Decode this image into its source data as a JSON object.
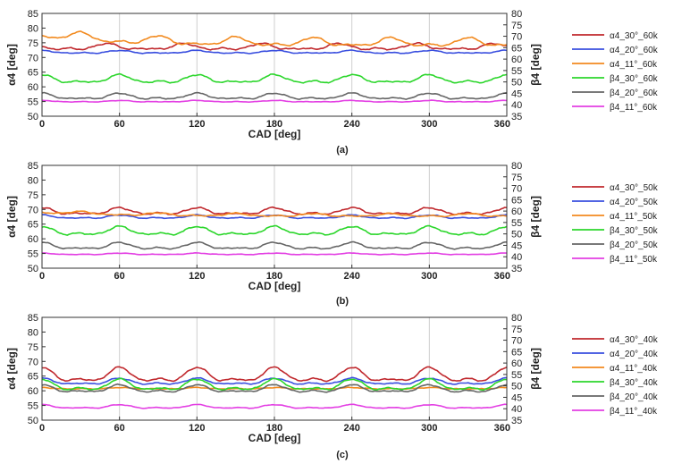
{
  "chart_data": [
    {
      "type": "line",
      "panel_label": "(a)",
      "xlabel": "CAD [deg]",
      "ylabel_left": "α4 [deg]",
      "ylabel_right": "β4 [deg]",
      "xlim": [
        0,
        360
      ],
      "ylim_left": [
        50,
        85
      ],
      "ylim_right": [
        35,
        80
      ],
      "xticks": [
        0,
        60,
        120,
        180,
        240,
        300,
        360
      ],
      "yticks_left": [
        50,
        55,
        60,
        65,
        70,
        75,
        80,
        85
      ],
      "yticks_right": [
        35,
        40,
        45,
        50,
        55,
        60,
        65,
        70,
        75,
        80
      ],
      "series": [
        {
          "name": "α4_30°_60k",
          "sym": "α",
          "sub": "4",
          "rest": "_30°_60k",
          "color": "#c0282d",
          "axis": "left",
          "base": 73.5,
          "amp": 1.3,
          "period": 60,
          "peak": 50,
          "noise": 0.35
        },
        {
          "name": "α4_20°_60k",
          "sym": "α",
          "sub": "4",
          "rest": "_20°_60k",
          "color": "#3a4fdf",
          "axis": "left",
          "base": 71.8,
          "amp": 0.6,
          "period": 60,
          "peak": 0,
          "noise": 0.2
        },
        {
          "name": "α4_11°_60k",
          "sym": "α",
          "sub": "4",
          "rest": "_11°_60k",
          "color": "#f28a1f",
          "axis": "left",
          "base": 75.0,
          "amp": 1.8,
          "period": 60,
          "peak": 30,
          "noise": 0.35,
          "trend": 3.0
        },
        {
          "name": "β4_30°_60k",
          "sym": "β",
          "sub": "4",
          "rest": "_30°_60k",
          "color": "#2bd62b",
          "axis": "right",
          "base": 51.0,
          "amp": 2.2,
          "period": 60,
          "peak": 0,
          "noise": 0.45
        },
        {
          "name": "β4_20°_60k",
          "sym": "β",
          "sub": "4",
          "rest": "_20°_60k",
          "color": "#666666",
          "axis": "right",
          "base": 43.5,
          "amp": 1.6,
          "period": 60,
          "peak": 0,
          "noise": 0.35
        },
        {
          "name": "β4_11°_60k",
          "sym": "β",
          "sub": "4",
          "rest": "_11°_60k",
          "color": "#e33fe3",
          "axis": "right",
          "base": 41.5,
          "amp": 0.4,
          "period": 60,
          "peak": 0,
          "noise": 0.15
        }
      ]
    },
    {
      "type": "line",
      "panel_label": "(b)",
      "xlabel": "CAD [deg]",
      "ylabel_left": "α4 [deg]",
      "ylabel_right": "β4 [deg]",
      "xlim": [
        0,
        360
      ],
      "ylim_left": [
        50,
        85
      ],
      "ylim_right": [
        35,
        80
      ],
      "xticks": [
        0,
        60,
        120,
        180,
        240,
        300,
        360
      ],
      "yticks_left": [
        50,
        55,
        60,
        65,
        70,
        75,
        80,
        85
      ],
      "yticks_right": [
        35,
        40,
        45,
        50,
        55,
        60,
        65,
        70,
        75,
        80
      ],
      "series": [
        {
          "name": "α4_30°_50k",
          "sym": "α",
          "sub": "4",
          "rest": "_30°_50k",
          "color": "#c0282d",
          "axis": "left",
          "base": 69.2,
          "amp": 1.4,
          "period": 60,
          "peak": 0,
          "noise": 0.35
        },
        {
          "name": "α4_20°_50k",
          "sym": "α",
          "sub": "4",
          "rest": "_20°_50k",
          "color": "#3a4fdf",
          "axis": "left",
          "base": 67.4,
          "amp": 0.7,
          "period": 60,
          "peak": 0,
          "noise": 0.2
        },
        {
          "name": "α4_11°_50k",
          "sym": "α",
          "sub": "4",
          "rest": "_11°_50k",
          "color": "#f28a1f",
          "axis": "left",
          "base": 68.0,
          "amp": 0.6,
          "period": 60,
          "peak": 30,
          "noise": 0.25,
          "trend": 1.2
        },
        {
          "name": "β4_30°_50k",
          "sym": "β",
          "sub": "4",
          "rest": "_30°_50k",
          "color": "#2bd62b",
          "axis": "right",
          "base": 51.0,
          "amp": 2.3,
          "period": 60,
          "peak": 0,
          "noise": 0.45
        },
        {
          "name": "β4_20°_50k",
          "sym": "β",
          "sub": "4",
          "rest": "_20°_50k",
          "color": "#666666",
          "axis": "right",
          "base": 44.5,
          "amp": 1.8,
          "period": 60,
          "peak": 0,
          "noise": 0.35
        },
        {
          "name": "β4_11°_50k",
          "sym": "β",
          "sub": "4",
          "rest": "_11°_50k",
          "color": "#e33fe3",
          "axis": "right",
          "base": 41.2,
          "amp": 0.4,
          "period": 60,
          "peak": 0,
          "noise": 0.15
        }
      ]
    },
    {
      "type": "line",
      "panel_label": "(c)",
      "xlabel": "CAD [deg]",
      "ylabel_left": "α4 [deg]",
      "ylabel_right": "β4 [deg]",
      "xlim": [
        0,
        360
      ],
      "ylim_left": [
        50,
        85
      ],
      "ylim_right": [
        35,
        80
      ],
      "xticks": [
        0,
        60,
        120,
        180,
        240,
        300,
        360
      ],
      "yticks_left": [
        50,
        55,
        60,
        65,
        70,
        75,
        80,
        85
      ],
      "yticks_right": [
        35,
        40,
        45,
        50,
        55,
        60,
        65,
        70,
        75,
        80
      ],
      "series": [
        {
          "name": "α4_30°_40k",
          "sym": "α",
          "sub": "4",
          "rest": "_30°_40k",
          "color": "#c0282d",
          "axis": "left",
          "base": 65.0,
          "amp": 3.0,
          "period": 60,
          "peak": 0,
          "noise": 0.35
        },
        {
          "name": "α4_20°_40k",
          "sym": "α",
          "sub": "4",
          "rest": "_20°_40k",
          "color": "#3a4fdf",
          "axis": "left",
          "base": 63.0,
          "amp": 1.3,
          "period": 60,
          "peak": 0,
          "noise": 0.25
        },
        {
          "name": "α4_11°_40k",
          "sym": "α",
          "sub": "4",
          "rest": "_11°_40k",
          "color": "#f28a1f",
          "axis": "left",
          "base": 60.8,
          "amp": 0.3,
          "period": 60,
          "peak": 0,
          "noise": 0.15
        },
        {
          "name": "β4_30°_40k",
          "sym": "β",
          "sub": "4",
          "rest": "_30°_40k",
          "color": "#2bd62b",
          "axis": "right",
          "base": 50.0,
          "amp": 3.0,
          "period": 60,
          "peak": 0,
          "noise": 0.4
        },
        {
          "name": "β4_20°_40k",
          "sym": "β",
          "sub": "4",
          "rest": "_20°_40k",
          "color": "#666666",
          "axis": "right",
          "base": 48.5,
          "amp": 2.0,
          "period": 60,
          "peak": 0,
          "noise": 0.35
        },
        {
          "name": "β4_11°_40k",
          "sym": "β",
          "sub": "4",
          "rest": "_11°_40k",
          "color": "#e33fe3",
          "axis": "right",
          "base": 40.8,
          "amp": 1.0,
          "period": 60,
          "peak": 0,
          "noise": 0.2
        }
      ]
    }
  ]
}
